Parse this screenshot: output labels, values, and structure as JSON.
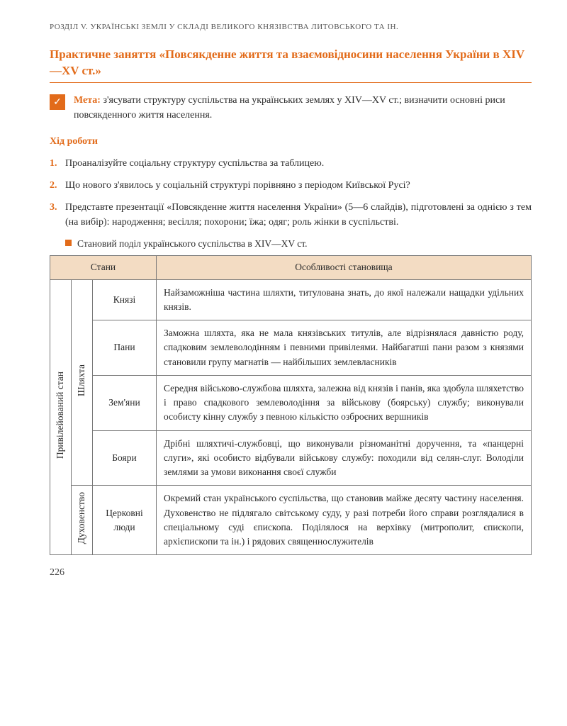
{
  "running_header": "РОЗДІЛ V. УКРАЇНСЬКІ ЗЕМЛІ У СКЛАДІ ВЕЛИКОГО КНЯЗІВСТВА ЛИТОВСЬКОГО ТА ІН.",
  "lesson_title": "Практичне заняття «Повсякденне життя та взаємовідносини населення України в XIV—XV ст.»",
  "goal": {
    "label": "Мета:",
    "text": " з'ясувати структуру суспільства на українських землях у XIV—XV ст.; визначити основні риси повсякденного життя населення."
  },
  "work_heading": "Хід роботи",
  "work_items": [
    {
      "num": "1.",
      "text": "Проаналізуйте соціальну структуру суспільства за таблицею."
    },
    {
      "num": "2.",
      "text": "Що нового з'явилось у соціальній структурі порівняно з періодом Київської Русі?"
    },
    {
      "num": "3.",
      "text": "Представте презентації «Повсякденне життя населення України» (5—6 слайдів), підготовлені за однією з тем (на вибір): народження; весілля; похорони; їжа; одяг; роль жінки в суспільстві."
    }
  ],
  "table_caption": "Становий поділ українського суспільства в XIV—XV ст.",
  "table": {
    "headers": {
      "col1": "Стани",
      "col2": "Особливості становища"
    },
    "vert_main": "Привілейований стан",
    "groups": [
      {
        "vert": "Шляхта",
        "rows": [
          {
            "name": "Князі",
            "desc": "Найзаможніша частина шляхти, титулована знать, до якої належали нащадки удільних князів."
          },
          {
            "name": "Пани",
            "desc": "Заможна шляхта, яка не мала князівських титулів, але відрізнялася давністю роду, спадковим землеволодінням і певними привілеями. Найбагатші пани разом з князями становили групу магнатів — найбільших землевласників"
          },
          {
            "name": "Зем'яни",
            "desc": "Середня військово-службова шляхта, залежна від князів і панів, яка здобула шляхетство і право спадкового землеволодіння за військову (боярську) службу; виконували особисту кінну службу з певною кількістю озброєних вершників"
          },
          {
            "name": "Бояри",
            "desc": "Дрібні шляхтичі-службовці, що виконували різноманітні доручення, та «панцерні слуги», які особисто відбували військову службу: походили від селян-слуг. Володіли землями за умови виконання своєї служби"
          }
        ]
      },
      {
        "vert": "Духовенство",
        "rows": [
          {
            "name": "Церковні люди",
            "desc": "Окремий стан українського суспільства, що становив майже десяту частину населення. Духовенство не підлягало світському суду, у разі потреби його справи розглядалися в спеціальному суді єпископа. Поділялося на верхівку (митрополит, єпископи, архієпископи та ін.) і рядових священнослужителів"
          }
        ]
      }
    ]
  },
  "page_number": "226",
  "colors": {
    "accent": "#e26b1a",
    "th_bg": "#f3dcc3",
    "border": "#777777",
    "text": "#2a2a2a"
  }
}
